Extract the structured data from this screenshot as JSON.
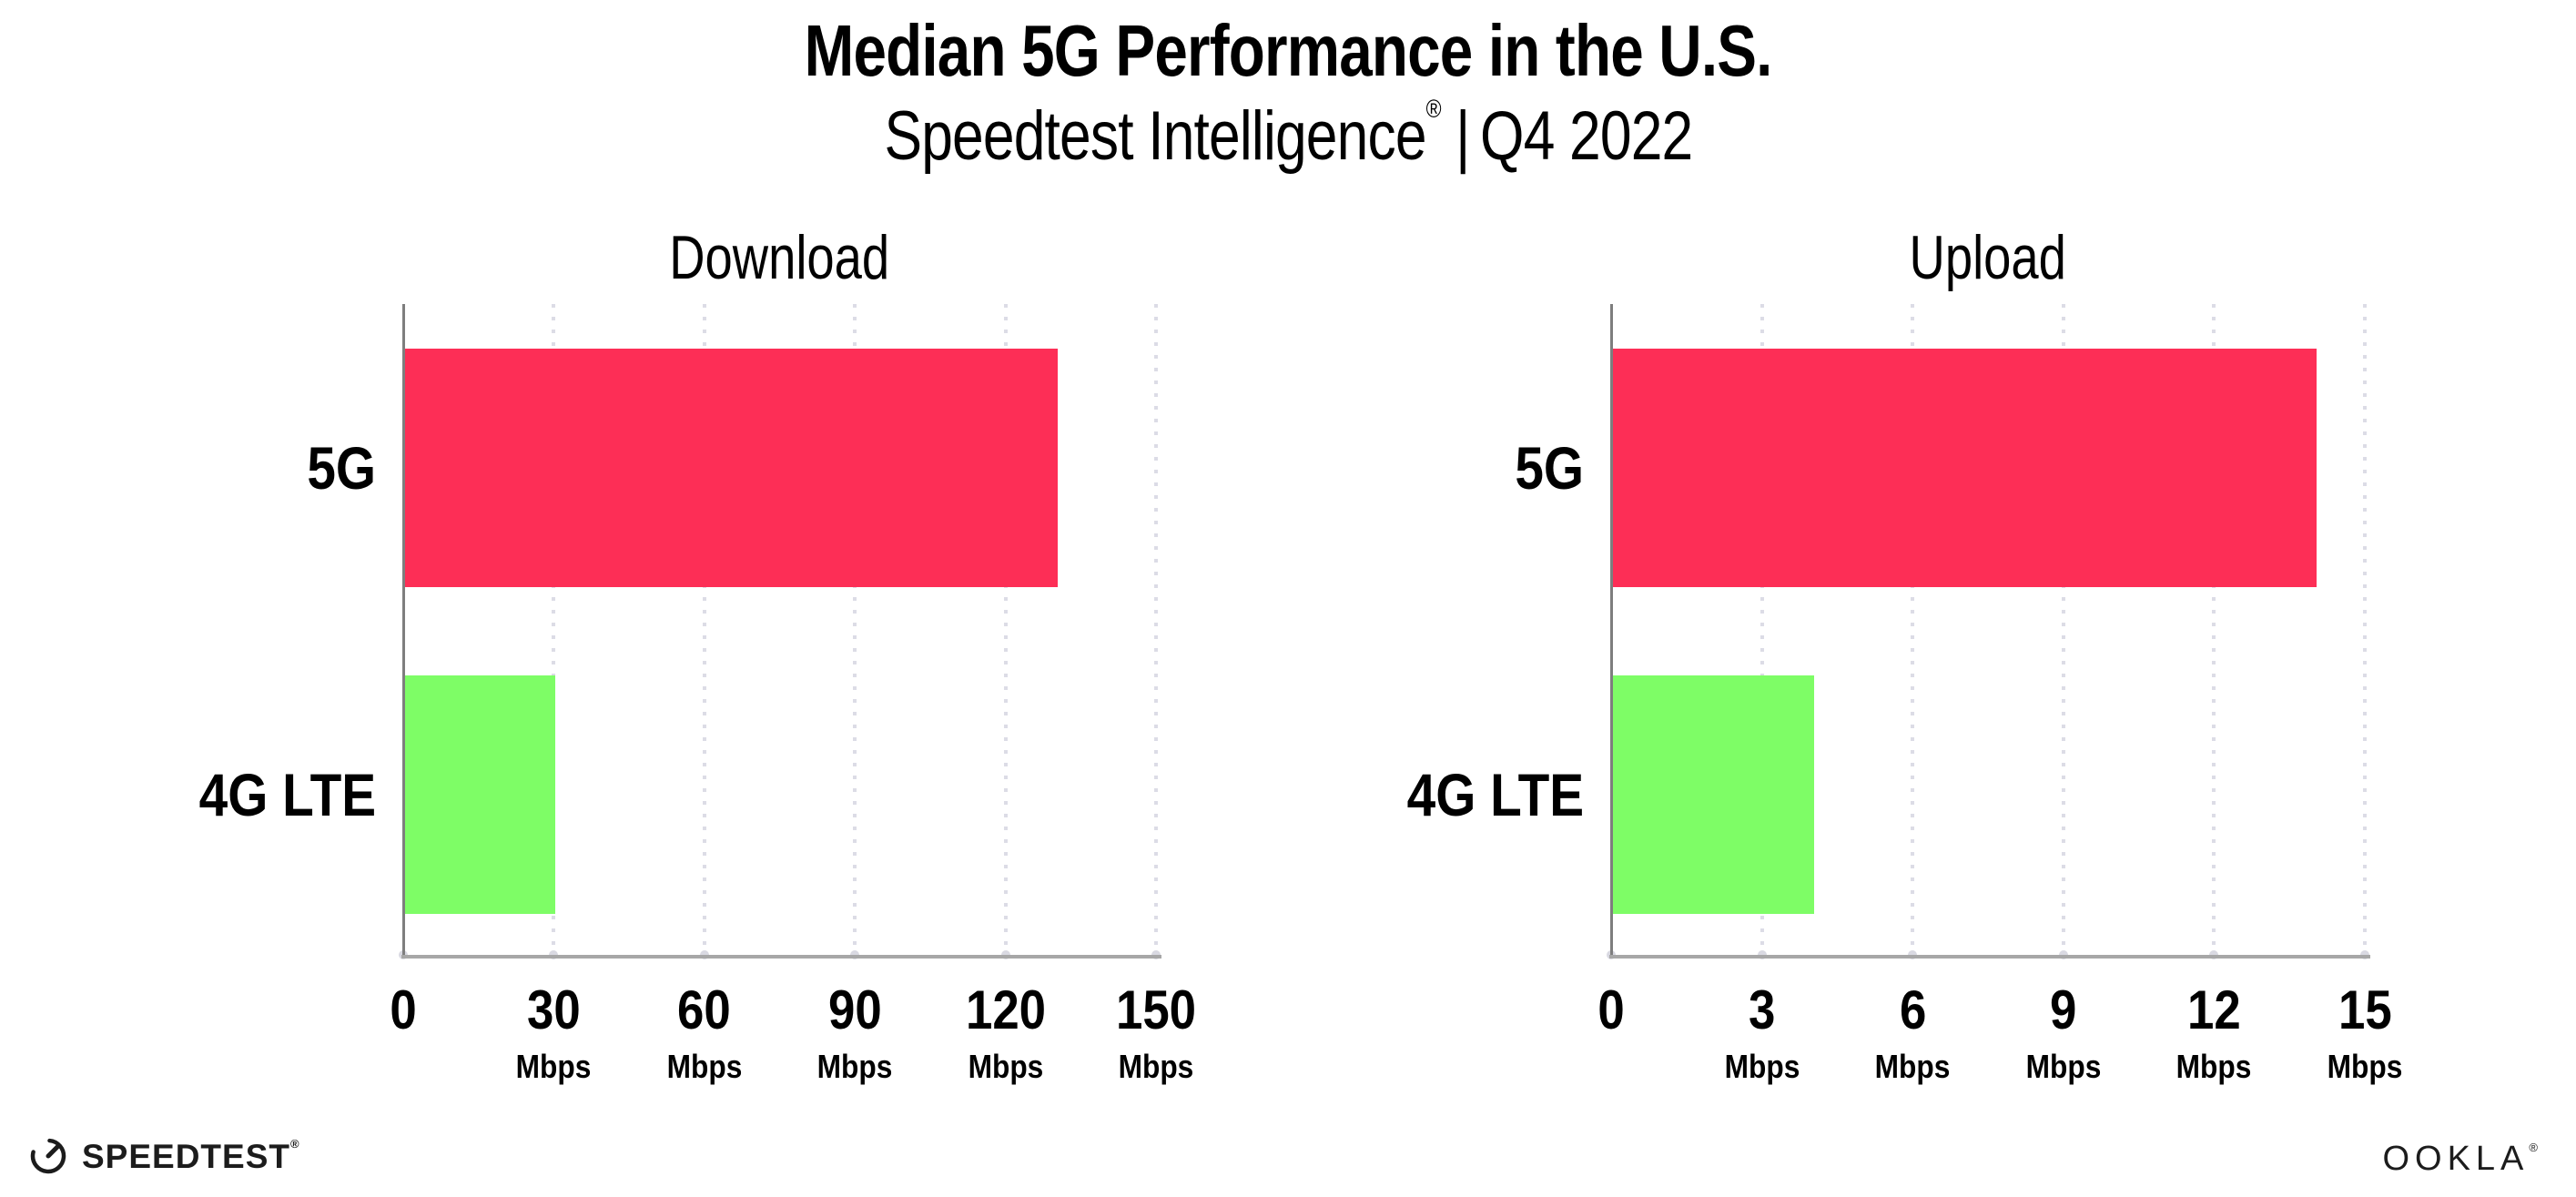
{
  "title": "Median 5G Performance in the U.S.",
  "subtitle": {
    "brand": "Speedtest Intelligence",
    "reg_mark": "®",
    "separator": "|",
    "period": "Q4 2022"
  },
  "colors": {
    "bar_5g": "#fd2e56",
    "bar_4g_lte": "#7efd66",
    "axis_line": "#a7a7a7",
    "y_axis_line": "#7e7e7e",
    "gridline": "#dcdce6",
    "text": "#000000"
  },
  "chart_data": [
    {
      "type": "bar",
      "orientation": "horizontal",
      "title": "Download",
      "categories": [
        "5G",
        "4G LTE"
      ],
      "values": [
        130,
        30
      ],
      "unit": "Mbps",
      "xlim": [
        0,
        150
      ],
      "xticks": [
        0,
        30,
        60,
        90,
        120,
        150
      ],
      "bar_colors": [
        "#fd2e56",
        "#7efd66"
      ],
      "grid": "vertical-dotted",
      "legend": "none"
    },
    {
      "type": "bar",
      "orientation": "horizontal",
      "title": "Upload",
      "categories": [
        "5G",
        "4G LTE"
      ],
      "values": [
        14,
        4
      ],
      "unit": "Mbps",
      "xlim": [
        0,
        15
      ],
      "xticks": [
        0,
        3,
        6,
        9,
        12,
        15
      ],
      "bar_colors": [
        "#fd2e56",
        "#7efd66"
      ],
      "grid": "vertical-dotted",
      "legend": "none"
    }
  ],
  "footer": {
    "speedtest_label": "SPEEDTEST",
    "speedtest_mark": "®",
    "ookla_label": "OOKLA",
    "ookla_mark": "®"
  }
}
